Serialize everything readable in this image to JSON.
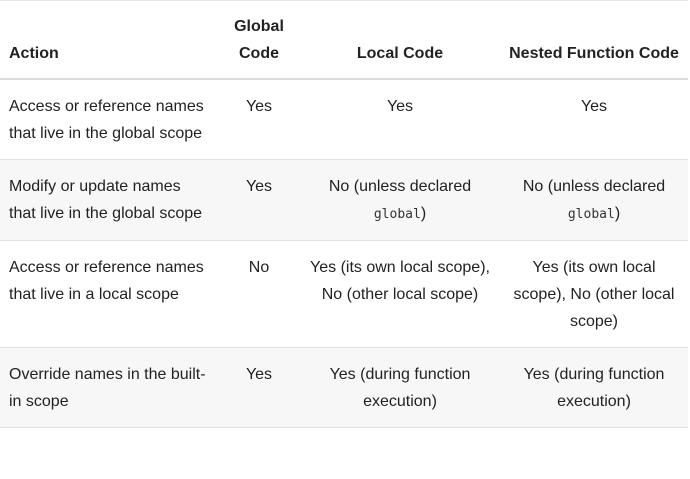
{
  "table": {
    "headers": {
      "action": "Action",
      "global_code": "Global Code",
      "local_code": "Local Code",
      "nested_function_code": "Nested Function Code"
    },
    "rows": [
      {
        "action": "Access or reference names that live in the global scope",
        "global": "Yes",
        "local": {
          "text": "Yes",
          "code": "",
          "suffix": ""
        },
        "nested": {
          "text": "Yes",
          "code": "",
          "suffix": ""
        }
      },
      {
        "action": "Modify or update names that live in the global scope",
        "global": "Yes",
        "local": {
          "text": "No (unless declared ",
          "code": "global",
          "suffix": ")"
        },
        "nested": {
          "text": "No (unless declared ",
          "code": "global",
          "suffix": ")"
        }
      },
      {
        "action": "Access or reference names that live in a local scope",
        "global": "No",
        "local": {
          "text": "Yes (its own local scope), No (other local scope)",
          "code": "",
          "suffix": ""
        },
        "nested": {
          "text": "Yes (its own local scope), No (other local scope)",
          "code": "",
          "suffix": ""
        }
      },
      {
        "action": "Override names in the built-in scope",
        "global": "Yes",
        "local": {
          "text": "Yes (during function execution)",
          "code": "",
          "suffix": ""
        },
        "nested": {
          "text": "Yes (during function execution)",
          "code": "",
          "suffix": ""
        }
      }
    ]
  }
}
